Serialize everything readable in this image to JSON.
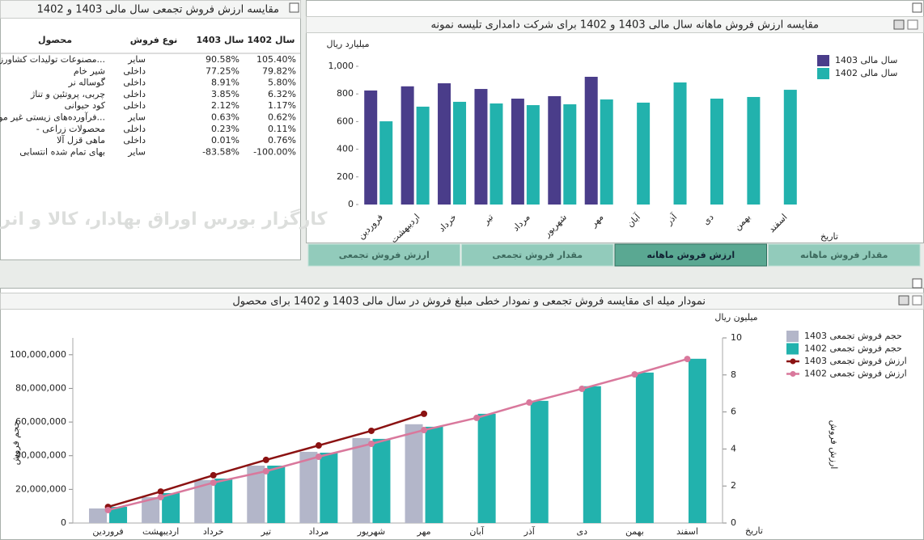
{
  "table_panel": {
    "title": "مقایسه ارزش فروش تجمعی سال مالی 1403 و 1402",
    "headers": [
      "محصول",
      "نوع فروش",
      "سال 1403",
      "سال 1402"
    ],
    "rows": [
      [
        "...مصنوعات تولیدات کشاورزی",
        "سایر",
        "90.58%",
        "105.40%"
      ],
      [
        "شیر خام",
        "داخلی",
        "77.25%",
        "79.82%"
      ],
      [
        "گوساله نر",
        "داخلی",
        "8.91%",
        "5.80%"
      ],
      [
        "چربی، پروتئین و تناژ",
        "داخلی",
        "3.85%",
        "6.32%"
      ],
      [
        "کود حیوانی",
        "داخلی",
        "2.12%",
        "1.17%"
      ],
      [
        "...فرآورده‌های زیستی غیر مولد",
        "سایر",
        "0.63%",
        "0.62%"
      ],
      [
        "محصولات زراعی -",
        "داخلی",
        "0.23%",
        "0.11%"
      ],
      [
        "ماهی قزل آلا",
        "داخلی",
        "0.01%",
        "0.76%"
      ],
      [
        "بهای تمام شده انتسابی",
        "سایر",
        "-83.58%",
        "-100.00%"
      ]
    ],
    "watermark": "کارگزار بورس اوراق بهادار، کالا و انرژی"
  },
  "tabs": {
    "labels": [
      "مقدار فروش ماهانه",
      "ارزش فروش ماهانه",
      "مقدار فروش تجمعی",
      "ارزش فروش تجمعی"
    ],
    "active": 1
  },
  "chart_data": [
    {
      "type": "bar",
      "title": "مقایسه ارزش فروش ماهانه سال مالی 1403 و 1402 برای شرکت دامداری تلیسه نمونه",
      "y_label": "میلیارد ریال",
      "x_label": "تاریخ",
      "categories": [
        "فروردین",
        "اردیبهشت",
        "خرداد",
        "تیر",
        "مرداد",
        "شهریور",
        "مهر",
        "آبان",
        "آذر",
        "دی",
        "بهمن",
        "اسفند"
      ],
      "series": [
        {
          "name": "سال مالی 1403",
          "color": "#4a3d8a",
          "values": [
            825,
            855,
            877,
            836,
            766,
            784,
            924,
            null,
            null,
            null,
            null,
            null
          ]
        },
        {
          "name": "سال مالی 1402",
          "color": "#22b2ad",
          "values": [
            602,
            708,
            743,
            731,
            719,
            725,
            760,
            737,
            883,
            766,
            778,
            830
          ]
        }
      ],
      "ylim": [
        0,
        1000
      ],
      "yticks": [
        0,
        200,
        400,
        600,
        800,
        {
          "value": 1000,
          "label": "1,000"
        }
      ],
      "legend": "upper right"
    },
    {
      "type": "combo",
      "title": "نمودار میله ای مقایسه فروش تجمعی و نمودار خطی مبلغ فروش در سال مالی 1403 و 1402 برای محصول",
      "y_label": "حجم فروش",
      "y2_label": "ارزش فروش",
      "y2_unit": "میلیون ریال",
      "x_label": "تاریخ",
      "categories": [
        "فروردین",
        "اردیبهشت",
        "خرداد",
        "تیر",
        "مرداد",
        "شهریور",
        "مهر",
        "آبان",
        "آذر",
        "دی",
        "بهمن",
        "اسفند"
      ],
      "series": [
        {
          "name": "حجم فروش تجمعی 1403",
          "type": "bar",
          "color": "#b3b6c9",
          "values": [
            8650000,
            15400000,
            25500000,
            34100000,
            42300000,
            50500000,
            58700000,
            null,
            null,
            null,
            null,
            null
          ]
        },
        {
          "name": "حجم فروش تجمعی 1402",
          "type": "bar",
          "color": "#22b2ad",
          "values": [
            9600000,
            17800000,
            26400000,
            34100000,
            41800000,
            50000000,
            57200000,
            64900000,
            72600000,
            81300000,
            89400000,
            97600000
          ]
        },
        {
          "name": "ارزش فروش تجمعی 1403",
          "type": "line",
          "axis": "y2",
          "color": "#8b1212",
          "values": [
            0.87,
            1.7,
            2.58,
            3.41,
            4.19,
            4.98,
            5.9,
            null,
            null,
            null,
            null,
            null
          ]
        },
        {
          "name": "ارزش فروش تجمعی 1402",
          "type": "line",
          "axis": "y2",
          "color": "#d9789c",
          "values": [
            0.7,
            1.4,
            2.18,
            2.8,
            3.58,
            4.28,
            5.02,
            5.68,
            6.51,
            7.25,
            8.03,
            8.86
          ]
        }
      ],
      "ylim": [
        0,
        110000000
      ],
      "yticks": [
        0,
        {
          "value": 20000000,
          "label": "20,000,000"
        },
        {
          "value": 40000000,
          "label": "40,000,000"
        },
        {
          "value": 60000000,
          "label": "60,000,000"
        },
        {
          "value": 80000000,
          "label": "80,000,000"
        },
        {
          "value": 100000000,
          "label": "100,000,000"
        }
      ],
      "y2lim": [
        0,
        10
      ],
      "y2ticks": [
        0,
        2,
        4,
        6,
        8,
        10
      ],
      "legend": "upper right"
    }
  ]
}
